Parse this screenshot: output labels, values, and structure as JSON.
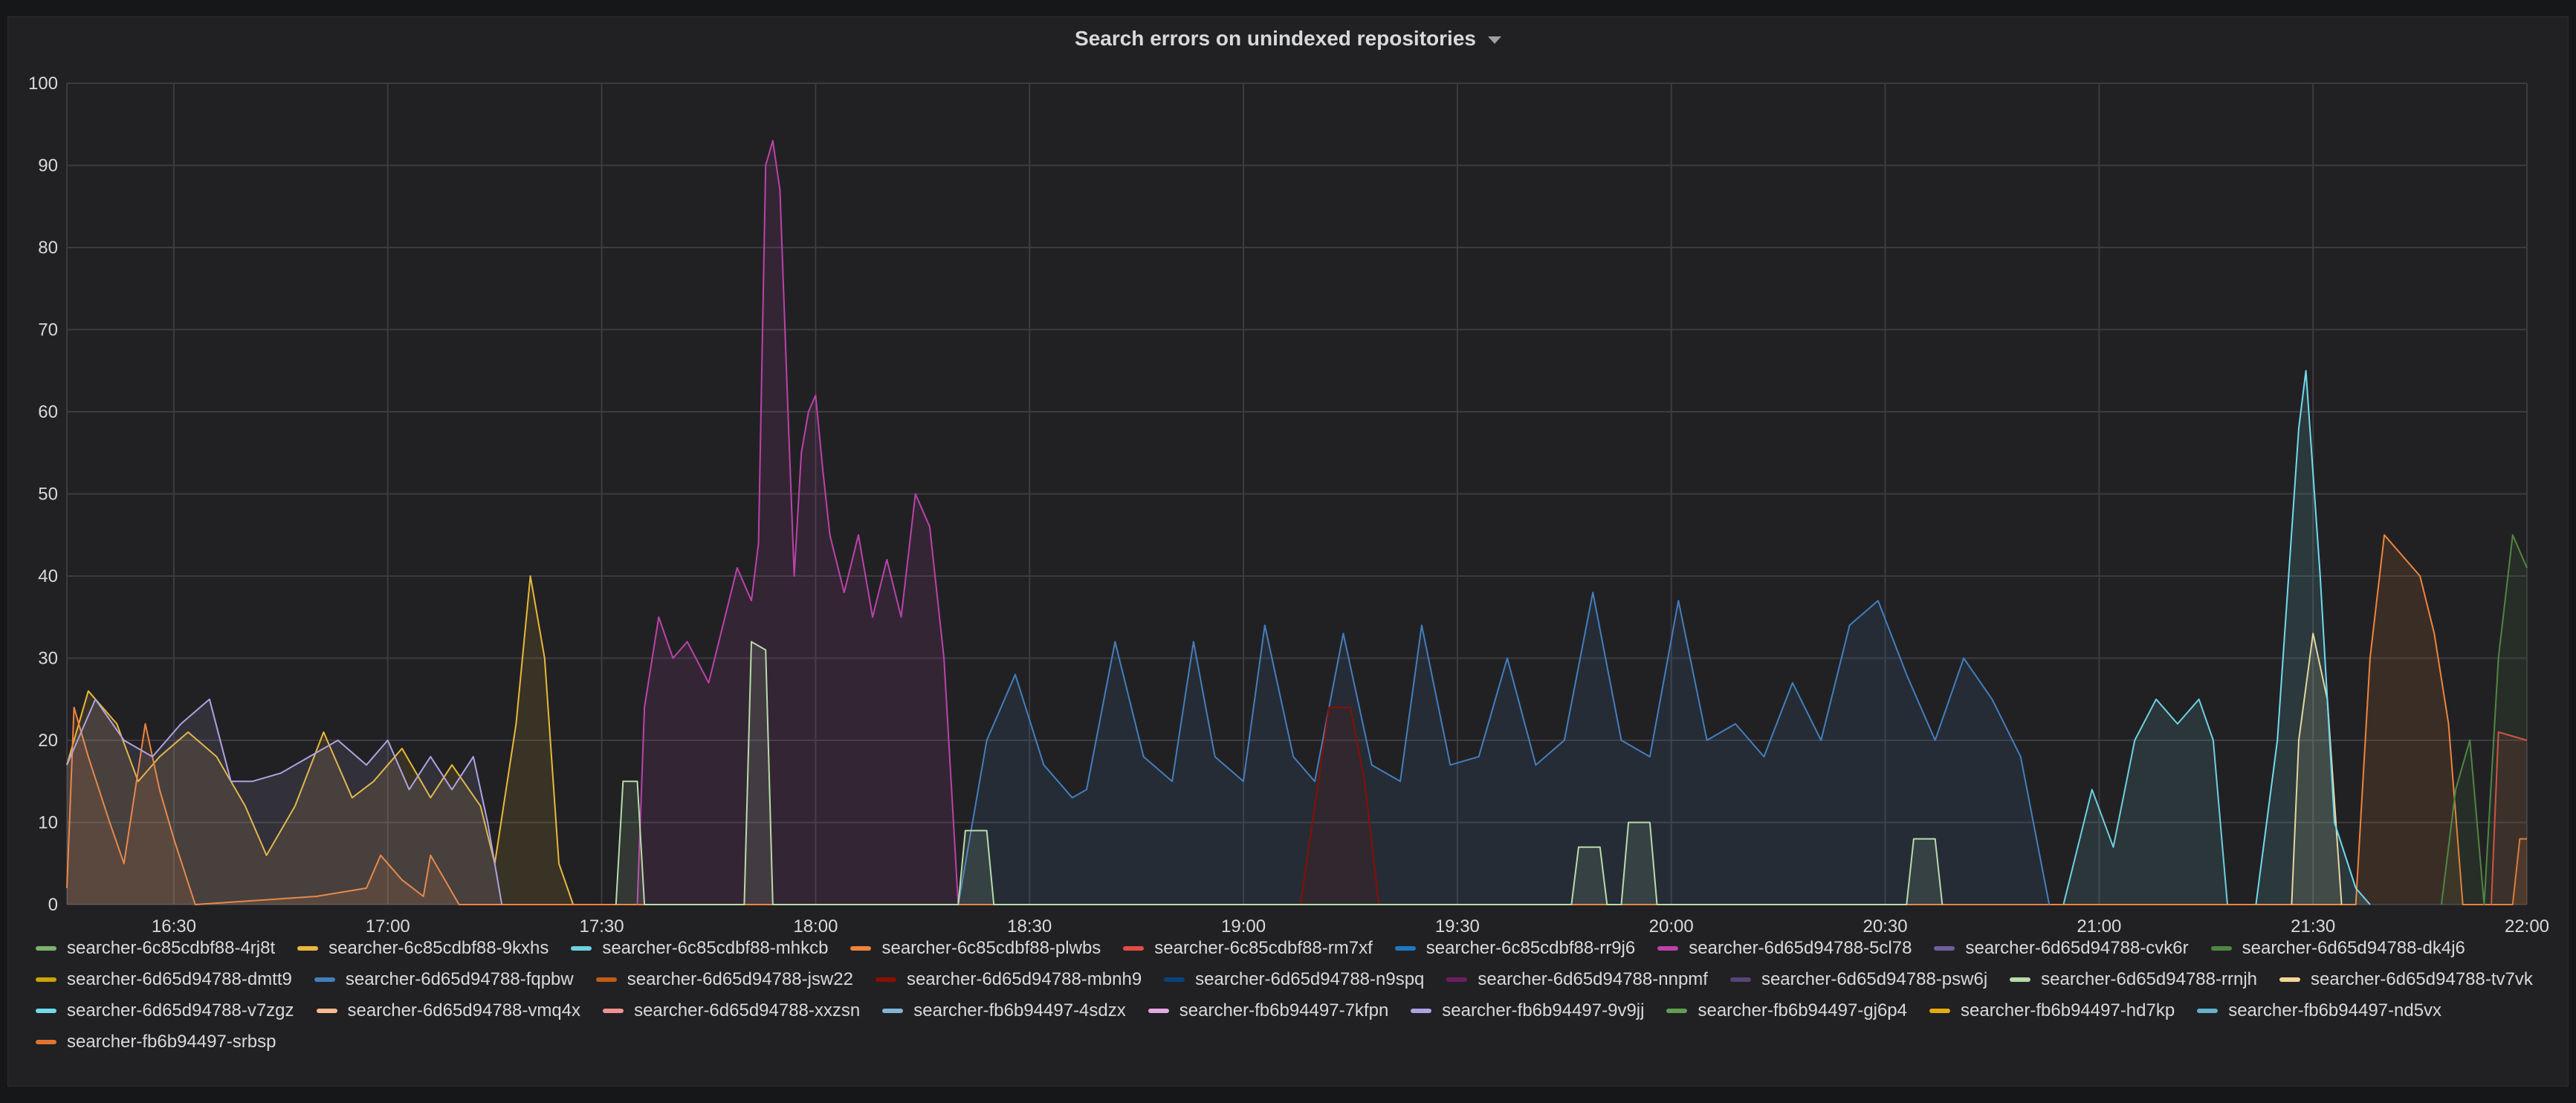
{
  "panel": {
    "title": "Search errors on unindexed repositories"
  },
  "chart_data": {
    "type": "area",
    "title": "Search errors on unindexed repositories",
    "x_ticks": [
      "16:30",
      "17:00",
      "17:30",
      "18:00",
      "18:30",
      "19:00",
      "19:30",
      "20:00",
      "20:30",
      "21:00",
      "21:30",
      "22:00"
    ],
    "x_range": [
      "16:15",
      "22:00"
    ],
    "ylim": [
      0,
      100
    ],
    "y_ticks": [
      0,
      10,
      20,
      30,
      40,
      50,
      60,
      70,
      80,
      90,
      100
    ],
    "grid": true,
    "legend_placement": "bottom",
    "series": [
      {
        "name": "searcher-6c85cdbf88-4rj8t",
        "color": "#7eb26d",
        "points": []
      },
      {
        "name": "searcher-6c85cdbf88-9kxhs",
        "color": "#eab839",
        "points": [
          [
            "16:15",
            17
          ],
          [
            "16:18",
            26
          ],
          [
            "16:22",
            22
          ],
          [
            "16:25",
            15
          ],
          [
            "16:28",
            18
          ],
          [
            "16:32",
            21
          ],
          [
            "16:36",
            18
          ],
          [
            "16:40",
            12
          ],
          [
            "16:43",
            6
          ],
          [
            "16:47",
            12
          ],
          [
            "16:51",
            21
          ],
          [
            "16:55",
            13
          ],
          [
            "16:58",
            15
          ],
          [
            "17:02",
            19
          ],
          [
            "17:06",
            13
          ],
          [
            "17:09",
            17
          ],
          [
            "17:13",
            12
          ],
          [
            "17:15",
            5
          ],
          [
            "17:18",
            22
          ],
          [
            "17:20",
            40
          ],
          [
            "17:22",
            30
          ],
          [
            "17:24",
            5
          ],
          [
            "17:26",
            0
          ]
        ]
      },
      {
        "name": "searcher-6c85cdbf88-mhkcb",
        "color": "#6ed0e0",
        "points": [
          [
            "20:55",
            0
          ],
          [
            "20:59",
            14
          ],
          [
            "21:02",
            7
          ],
          [
            "21:05",
            20
          ],
          [
            "21:08",
            25
          ],
          [
            "21:11",
            22
          ],
          [
            "21:14",
            25
          ],
          [
            "21:16",
            20
          ],
          [
            "21:18",
            0
          ]
        ]
      },
      {
        "name": "searcher-6c85cdbf88-plwbs",
        "color": "#ef843c",
        "points": [
          [
            "16:15",
            2
          ],
          [
            "16:16",
            24
          ],
          [
            "16:18",
            18
          ],
          [
            "16:21",
            10
          ],
          [
            "16:23",
            5
          ],
          [
            "16:26",
            22
          ],
          [
            "16:28",
            14
          ],
          [
            "16:30",
            8
          ],
          [
            "16:33",
            0
          ],
          [
            "16:50",
            1
          ],
          [
            "16:57",
            2
          ],
          [
            "16:59",
            6
          ],
          [
            "17:02",
            3
          ],
          [
            "17:05",
            1
          ],
          [
            "17:06",
            6
          ],
          [
            "17:08",
            3
          ],
          [
            "17:10",
            0
          ],
          [
            "21:36",
            0
          ],
          [
            "21:38",
            30
          ],
          [
            "21:40",
            45
          ],
          [
            "21:43",
            42
          ],
          [
            "21:45",
            40
          ],
          [
            "21:47",
            33
          ],
          [
            "21:49",
            22
          ],
          [
            "21:51",
            0
          ],
          [
            "21:58",
            0
          ],
          [
            "21:59",
            8
          ],
          [
            "22:00",
            8
          ]
        ]
      },
      {
        "name": "searcher-6c85cdbf88-rm7xf",
        "color": "#e24d42",
        "points": [
          [
            "21:55",
            0
          ],
          [
            "21:56",
            21
          ],
          [
            "22:00",
            20
          ]
        ]
      },
      {
        "name": "searcher-6c85cdbf88-rr9j6",
        "color": "#1f78c1",
        "points": []
      },
      {
        "name": "searcher-6d65d94788-5cl78",
        "color": "#ba43a9",
        "points": [
          [
            "17:35",
            0
          ],
          [
            "17:36",
            24
          ],
          [
            "17:38",
            35
          ],
          [
            "17:40",
            30
          ],
          [
            "17:42",
            32
          ],
          [
            "17:45",
            27
          ],
          [
            "17:47",
            34
          ],
          [
            "17:49",
            41
          ],
          [
            "17:51",
            37
          ],
          [
            "17:52",
            44
          ],
          [
            "17:53",
            90
          ],
          [
            "17:54",
            93
          ],
          [
            "17:55",
            87
          ],
          [
            "17:56",
            63
          ],
          [
            "17:57",
            40
          ],
          [
            "17:58",
            55
          ],
          [
            "17:59",
            60
          ],
          [
            "18:00",
            62
          ],
          [
            "18:01",
            53
          ],
          [
            "18:02",
            45
          ],
          [
            "18:04",
            38
          ],
          [
            "18:06",
            45
          ],
          [
            "18:08",
            35
          ],
          [
            "18:10",
            42
          ],
          [
            "18:12",
            35
          ],
          [
            "18:14",
            50
          ],
          [
            "18:16",
            46
          ],
          [
            "18:18",
            30
          ],
          [
            "18:20",
            0
          ]
        ]
      },
      {
        "name": "searcher-6d65d94788-cvk6r",
        "color": "#705da0",
        "points": []
      },
      {
        "name": "searcher-6d65d94788-dk4j6",
        "color": "#508642",
        "points": [
          [
            "21:48",
            0
          ],
          [
            "21:50",
            14
          ],
          [
            "21:52",
            20
          ],
          [
            "21:54",
            0
          ],
          [
            "21:56",
            30
          ],
          [
            "21:58",
            45
          ],
          [
            "22:00",
            41
          ]
        ]
      },
      {
        "name": "searcher-6d65d94788-dmtt9",
        "color": "#cca300",
        "points": []
      },
      {
        "name": "searcher-6d65d94788-fqpbw",
        "color": "#447ebc",
        "points": [
          [
            "18:20",
            0
          ],
          [
            "18:24",
            20
          ],
          [
            "18:28",
            28
          ],
          [
            "18:32",
            17
          ],
          [
            "18:36",
            13
          ],
          [
            "18:38",
            14
          ],
          [
            "18:42",
            32
          ],
          [
            "18:46",
            18
          ],
          [
            "18:50",
            15
          ],
          [
            "18:53",
            32
          ],
          [
            "18:56",
            18
          ],
          [
            "19:00",
            15
          ],
          [
            "19:03",
            34
          ],
          [
            "19:07",
            18
          ],
          [
            "19:10",
            15
          ],
          [
            "19:14",
            33
          ],
          [
            "19:18",
            17
          ],
          [
            "19:22",
            15
          ],
          [
            "19:25",
            34
          ],
          [
            "19:29",
            17
          ],
          [
            "19:33",
            18
          ],
          [
            "19:37",
            30
          ],
          [
            "19:41",
            17
          ],
          [
            "19:45",
            20
          ],
          [
            "19:49",
            38
          ],
          [
            "19:53",
            20
          ],
          [
            "19:57",
            18
          ],
          [
            "20:01",
            37
          ],
          [
            "20:05",
            20
          ],
          [
            "20:09",
            22
          ],
          [
            "20:13",
            18
          ],
          [
            "20:17",
            27
          ],
          [
            "20:21",
            20
          ],
          [
            "20:25",
            34
          ],
          [
            "20:29",
            37
          ],
          [
            "20:33",
            28
          ],
          [
            "20:37",
            20
          ],
          [
            "20:41",
            30
          ],
          [
            "20:45",
            25
          ],
          [
            "20:49",
            18
          ],
          [
            "20:53",
            0
          ]
        ]
      },
      {
        "name": "searcher-6d65d94788-jsw22",
        "color": "#c15c17",
        "points": []
      },
      {
        "name": "searcher-6d65d94788-mbnh9",
        "color": "#890f02",
        "points": [
          [
            "19:08",
            0
          ],
          [
            "19:10",
            12
          ],
          [
            "19:12",
            24
          ],
          [
            "19:15",
            24
          ],
          [
            "19:17",
            15
          ],
          [
            "19:19",
            0
          ]
        ]
      },
      {
        "name": "searcher-6d65d94788-n9spq",
        "color": "#0a437c",
        "points": []
      },
      {
        "name": "searcher-6d65d94788-nnpmf",
        "color": "#6d1f62",
        "points": []
      },
      {
        "name": "searcher-6d65d94788-psw6j",
        "color": "#584477",
        "points": []
      },
      {
        "name": "searcher-6d65d94788-rrnjh",
        "color": "#b7dbab",
        "points": [
          [
            "17:32",
            0
          ],
          [
            "17:33",
            15
          ],
          [
            "17:35",
            15
          ],
          [
            "17:36",
            0
          ],
          [
            "17:50",
            0
          ],
          [
            "17:51",
            32
          ],
          [
            "17:53",
            31
          ],
          [
            "17:54",
            0
          ],
          [
            "18:20",
            0
          ],
          [
            "18:21",
            9
          ],
          [
            "18:24",
            9
          ],
          [
            "18:25",
            0
          ],
          [
            "19:46",
            0
          ],
          [
            "19:47",
            7
          ],
          [
            "19:50",
            7
          ],
          [
            "19:51",
            0
          ],
          [
            "19:53",
            0
          ],
          [
            "19:54",
            10
          ],
          [
            "19:57",
            10
          ],
          [
            "19:58",
            0
          ],
          [
            "20:33",
            0
          ],
          [
            "20:34",
            8
          ],
          [
            "20:37",
            8
          ],
          [
            "20:38",
            0
          ]
        ]
      },
      {
        "name": "searcher-6d65d94788-tv7vk",
        "color": "#f4d598",
        "points": [
          [
            "21:27",
            0
          ],
          [
            "21:28",
            20
          ],
          [
            "21:30",
            33
          ],
          [
            "21:32",
            25
          ],
          [
            "21:34",
            0
          ]
        ]
      },
      {
        "name": "searcher-6d65d94788-v7zgz",
        "color": "#70dbed",
        "points": [
          [
            "21:22",
            0
          ],
          [
            "21:25",
            20
          ],
          [
            "21:28",
            58
          ],
          [
            "21:29",
            65
          ],
          [
            "21:31",
            40
          ],
          [
            "21:33",
            10
          ],
          [
            "21:36",
            2
          ],
          [
            "21:38",
            0
          ]
        ]
      },
      {
        "name": "searcher-6d65d94788-vmq4x",
        "color": "#f9ba8f",
        "points": []
      },
      {
        "name": "searcher-6d65d94788-xxzsn",
        "color": "#f29191",
        "points": []
      },
      {
        "name": "searcher-fb6b94497-4sdzx",
        "color": "#82b5d8",
        "points": []
      },
      {
        "name": "searcher-fb6b94497-7kfpn",
        "color": "#e5a8e2",
        "points": []
      },
      {
        "name": "searcher-fb6b94497-9v9jj",
        "color": "#aea2e0",
        "points": [
          [
            "16:15",
            17
          ],
          [
            "16:19",
            25
          ],
          [
            "16:23",
            20
          ],
          [
            "16:27",
            18
          ],
          [
            "16:31",
            22
          ],
          [
            "16:35",
            25
          ],
          [
            "16:38",
            15
          ],
          [
            "16:41",
            15
          ],
          [
            "16:45",
            16
          ],
          [
            "16:49",
            18
          ],
          [
            "16:53",
            20
          ],
          [
            "16:57",
            17
          ],
          [
            "17:00",
            20
          ],
          [
            "17:03",
            14
          ],
          [
            "17:06",
            18
          ],
          [
            "17:09",
            14
          ],
          [
            "17:12",
            18
          ],
          [
            "17:14",
            10
          ],
          [
            "17:16",
            0
          ]
        ]
      },
      {
        "name": "searcher-fb6b94497-gj6p4",
        "color": "#629e51",
        "points": []
      },
      {
        "name": "searcher-fb6b94497-hd7kp",
        "color": "#e5ac0e",
        "points": []
      },
      {
        "name": "searcher-fb6b94497-nd5vx",
        "color": "#64b0c8",
        "points": []
      },
      {
        "name": "searcher-fb6b94497-srbsp",
        "color": "#e0752d",
        "points": []
      }
    ]
  }
}
